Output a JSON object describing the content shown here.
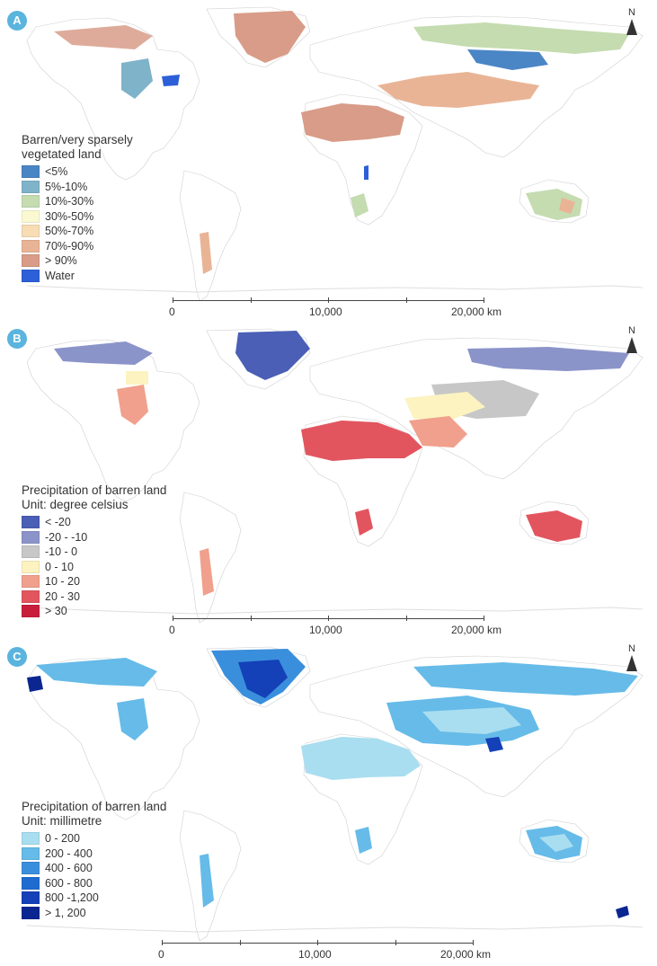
{
  "panels": [
    {
      "label": "A",
      "legend_title_lines": [
        "Barren/very sparsely",
        "vegetated land"
      ],
      "legend": [
        {
          "label": "<5%",
          "color": "#4a86c5"
        },
        {
          "label": "5%-10%",
          "color": "#7fb3c9"
        },
        {
          "label": "10%-30%",
          "color": "#c4dcb0"
        },
        {
          "label": "30%-50%",
          "color": "#fbf9d2"
        },
        {
          "label": "50%-70%",
          "color": "#f7dcb4"
        },
        {
          "label": "70%-90%",
          "color": "#e9b496"
        },
        {
          "label": "> 90%",
          "color": "#d89c88"
        },
        {
          "label": "Water",
          "color": "#2d5fd8"
        }
      ],
      "north": "N",
      "scale": [
        "0",
        "10,000",
        "20,000 km"
      ]
    },
    {
      "label": "B",
      "legend_title_lines": [
        "Precipitation of barren land",
        "Unit: degree celsius"
      ],
      "legend": [
        {
          "label": "< -20",
          "color": "#4a5fb5"
        },
        {
          "label": "-20 - -10",
          "color": "#8b94c9"
        },
        {
          "label": "-10 - 0",
          "color": "#c7c7c7"
        },
        {
          "label": "0 - 10",
          "color": "#fcf3c0"
        },
        {
          "label": "10 - 20",
          "color": "#f0a08c"
        },
        {
          "label": "20 - 30",
          "color": "#e2555f"
        },
        {
          "label": "> 30",
          "color": "#c81e3c"
        }
      ],
      "north": "N",
      "scale": [
        "0",
        "10,000",
        "20,000 km"
      ]
    },
    {
      "label": "C",
      "legend_title_lines": [
        "Precipitation of barren land",
        "Unit: millimetre"
      ],
      "legend": [
        {
          "label": "0 - 200",
          "color": "#a9def0"
        },
        {
          "label": "200 - 400",
          "color": "#66bbe8"
        },
        {
          "label": "400 - 600",
          "color": "#3a8fdc"
        },
        {
          "label": "600 - 800",
          "color": "#1f6cd0"
        },
        {
          "label": "800 -1,200",
          "color": "#1440b8"
        },
        {
          "label": "> 1, 200",
          "color": "#0b2690"
        }
      ],
      "north": "N",
      "scale": [
        "0",
        "10,000",
        "20,000 km"
      ]
    }
  ]
}
